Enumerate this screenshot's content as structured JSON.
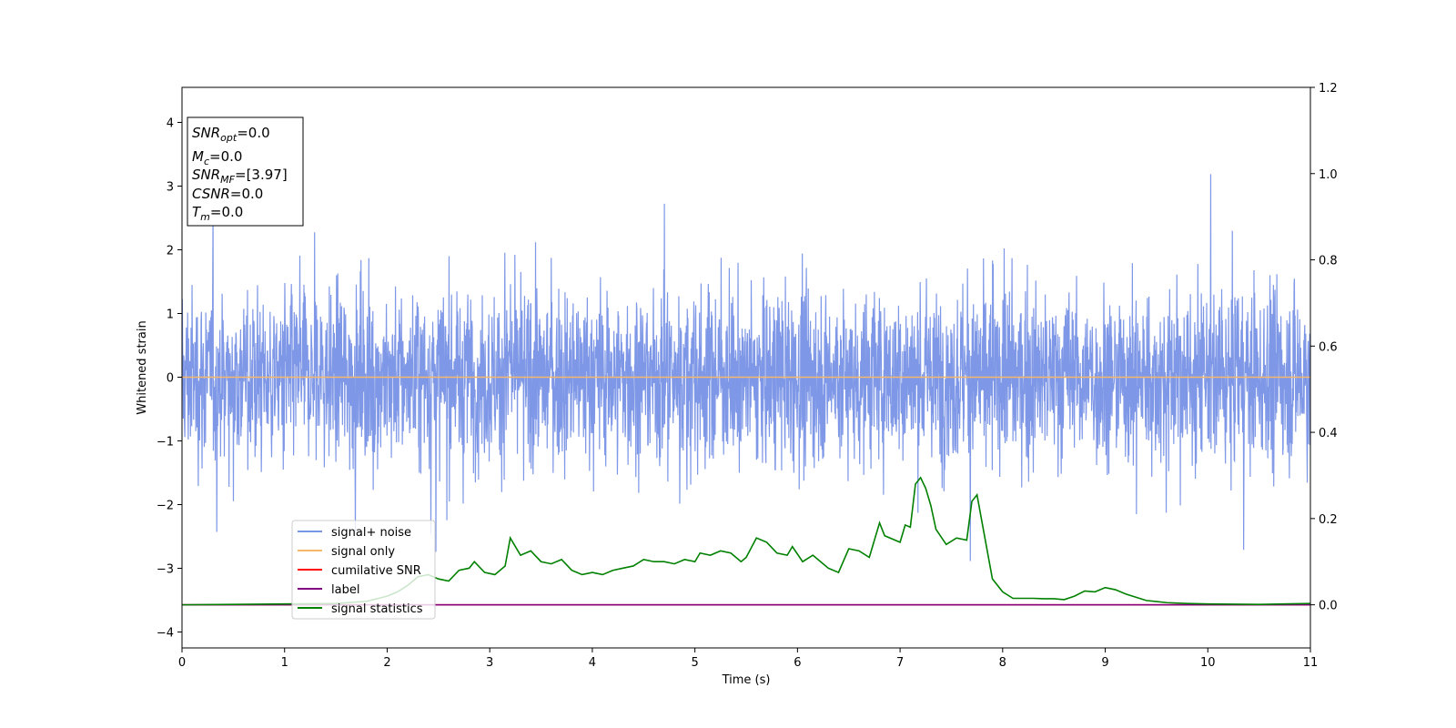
{
  "chart_data": {
    "type": "line",
    "xlabel": "Time (s)",
    "ylabel": "Whitened strain",
    "xlim": [
      0,
      11
    ],
    "ylim": [
      -4.25,
      4.55
    ],
    "y2lim": [
      -0.1,
      1.2
    ],
    "xticks": [
      0,
      1,
      2,
      3,
      4,
      5,
      6,
      7,
      8,
      9,
      10,
      11
    ],
    "yticks": [
      -4,
      -3,
      -2,
      -1,
      0,
      1,
      2,
      3,
      4
    ],
    "y2ticks": [
      "0.0",
      "0.2",
      "0.4",
      "0.6",
      "0.8",
      "1.0",
      "1.2"
    ],
    "grid": false,
    "legend_position": "lower-left",
    "info_box": {
      "line1": {
        "base": "SNR",
        "sub": "opt",
        "value": "=0.0"
      },
      "line2": {
        "base": "M",
        "sub": "c",
        "value": "=0.0"
      },
      "line3": {
        "base": "SNR",
        "sub": "MF",
        "value": "=[3.97]"
      },
      "line4": {
        "base": "CSNR",
        "value": "=0.0"
      },
      "line5": {
        "base": "T",
        "sub": "m",
        "value": "=0.0"
      }
    },
    "series": [
      {
        "name": "signal+ noise",
        "color": "#7b95e6",
        "axis": "left",
        "kind": "noise",
        "envelope": [
          -3.85,
          4.17
        ]
      },
      {
        "name": "signal only",
        "color": "#f5b86a",
        "axis": "left",
        "constant": 0.0
      },
      {
        "name": "cumilative SNR",
        "color": "#ff0000",
        "axis": "right",
        "constant": 0.0
      },
      {
        "name": "label",
        "color": "#800080",
        "axis": "right",
        "constant": 0.0
      },
      {
        "name": "signal statistics",
        "color": "#008000",
        "axis": "right",
        "x": [
          0,
          0.5,
          1.0,
          1.5,
          1.8,
          2.0,
          2.1,
          2.2,
          2.3,
          2.4,
          2.5,
          2.6,
          2.7,
          2.8,
          2.85,
          2.95,
          3.05,
          3.15,
          3.2,
          3.3,
          3.4,
          3.5,
          3.6,
          3.7,
          3.8,
          3.9,
          4.0,
          4.1,
          4.2,
          4.3,
          4.4,
          4.5,
          4.6,
          4.7,
          4.8,
          4.9,
          5.0,
          5.05,
          5.15,
          5.25,
          5.35,
          5.45,
          5.5,
          5.6,
          5.7,
          5.8,
          5.9,
          5.95,
          6.05,
          6.15,
          6.3,
          6.4,
          6.5,
          6.6,
          6.7,
          6.8,
          6.85,
          6.9,
          7.0,
          7.05,
          7.1,
          7.15,
          7.2,
          7.25,
          7.3,
          7.35,
          7.45,
          7.55,
          7.65,
          7.7,
          7.75,
          7.8,
          7.9,
          8.0,
          8.1,
          8.3,
          8.4,
          8.5,
          8.6,
          8.7,
          8.8,
          8.9,
          9.0,
          9.1,
          9.2,
          9.4,
          9.6,
          9.8,
          10.0,
          10.5,
          11.0
        ],
        "values": [
          0.0,
          0.001,
          0.002,
          0.003,
          0.008,
          0.02,
          0.03,
          0.045,
          0.065,
          0.07,
          0.06,
          0.055,
          0.08,
          0.085,
          0.1,
          0.075,
          0.07,
          0.09,
          0.155,
          0.115,
          0.125,
          0.1,
          0.095,
          0.105,
          0.08,
          0.07,
          0.075,
          0.07,
          0.08,
          0.085,
          0.09,
          0.105,
          0.1,
          0.1,
          0.095,
          0.105,
          0.1,
          0.12,
          0.115,
          0.125,
          0.12,
          0.1,
          0.11,
          0.155,
          0.145,
          0.12,
          0.115,
          0.135,
          0.1,
          0.115,
          0.085,
          0.075,
          0.13,
          0.125,
          0.11,
          0.19,
          0.16,
          0.155,
          0.145,
          0.185,
          0.18,
          0.28,
          0.295,
          0.27,
          0.23,
          0.175,
          0.14,
          0.155,
          0.15,
          0.24,
          0.255,
          0.19,
          0.06,
          0.03,
          0.015,
          0.015,
          0.014,
          0.014,
          0.012,
          0.02,
          0.032,
          0.03,
          0.04,
          0.035,
          0.025,
          0.01,
          0.005,
          0.003,
          0.002,
          0.001,
          0.003
        ]
      }
    ]
  }
}
